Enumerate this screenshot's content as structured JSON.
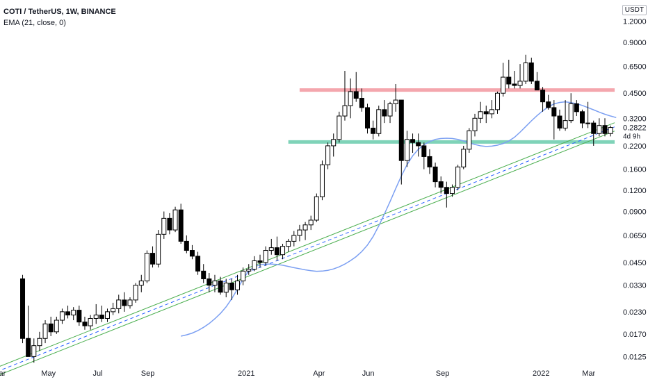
{
  "legend": {
    "symbol": "COTI / TetherUS, 1W, BINANCE",
    "indicator": "EMA (21, close, 0)"
  },
  "currency_badge": "USDT",
  "price_label": "0.2822",
  "countdown_label": "4d 9h",
  "colors": {
    "up_candle": "#ffffff",
    "down_candle": "#000000",
    "candle_outline": "#000000",
    "ema": "#7b9ff2",
    "resistance": "#f4a6ad",
    "support": "#7fd3b8",
    "channel": "#4caf50",
    "channel_mid": "#2962ff"
  },
  "chart_data": {
    "type": "candlestick",
    "y_scale": "log",
    "ylim": [
      0.0112,
      1.6
    ],
    "y_ticks": [
      "0.0125",
      "0.0170",
      "0.0230",
      "0.0330",
      "0.0450",
      "0.0650",
      "0.0900",
      "0.1200",
      "0.1600",
      "0.2200",
      "0.3200",
      "0.4500",
      "0.6500",
      "0.9000",
      "1.2000"
    ],
    "x_ticks": [
      "Mar",
      "May",
      "Jul",
      "Sep",
      "2021",
      "Apr",
      "Jun",
      "Sep",
      "2022",
      "Mar"
    ],
    "xlim": [
      "2020-03-02",
      "2022-03-21"
    ],
    "weekly_candles_ohlc": [
      [
        0.036,
        0.038,
        0.015,
        0.016
      ],
      [
        0.016,
        0.025,
        0.014,
        0.0125
      ],
      [
        0.0125,
        0.016,
        0.0115,
        0.0145
      ],
      [
        0.0145,
        0.0175,
        0.0135,
        0.016
      ],
      [
        0.016,
        0.0205,
        0.015,
        0.0195
      ],
      [
        0.0195,
        0.0215,
        0.0165,
        0.0175
      ],
      [
        0.0175,
        0.0215,
        0.017,
        0.0205
      ],
      [
        0.0205,
        0.024,
        0.0195,
        0.023
      ],
      [
        0.023,
        0.025,
        0.021,
        0.022
      ],
      [
        0.022,
        0.0245,
        0.0205,
        0.0235
      ],
      [
        0.0235,
        0.025,
        0.019,
        0.02
      ],
      [
        0.02,
        0.0215,
        0.018,
        0.019
      ],
      [
        0.019,
        0.022,
        0.018,
        0.021
      ],
      [
        0.021,
        0.0255,
        0.0195,
        0.022
      ],
      [
        0.022,
        0.025,
        0.02,
        0.021
      ],
      [
        0.021,
        0.024,
        0.02,
        0.023
      ],
      [
        0.023,
        0.026,
        0.022,
        0.024
      ],
      [
        0.024,
        0.029,
        0.0225,
        0.027
      ],
      [
        0.027,
        0.03,
        0.023,
        0.025
      ],
      [
        0.025,
        0.028,
        0.024,
        0.027
      ],
      [
        0.027,
        0.034,
        0.026,
        0.033
      ],
      [
        0.033,
        0.038,
        0.03,
        0.035
      ],
      [
        0.035,
        0.053,
        0.034,
        0.051
      ],
      [
        0.051,
        0.056,
        0.042,
        0.044
      ],
      [
        0.044,
        0.07,
        0.042,
        0.066
      ],
      [
        0.066,
        0.09,
        0.062,
        0.082
      ],
      [
        0.082,
        0.088,
        0.066,
        0.07
      ],
      [
        0.07,
        0.096,
        0.068,
        0.092
      ],
      [
        0.092,
        0.1,
        0.058,
        0.06
      ],
      [
        0.06,
        0.065,
        0.051,
        0.053
      ],
      [
        0.053,
        0.057,
        0.047,
        0.049
      ],
      [
        0.049,
        0.052,
        0.038,
        0.04
      ],
      [
        0.04,
        0.044,
        0.034,
        0.036
      ],
      [
        0.036,
        0.039,
        0.03,
        0.033
      ],
      [
        0.033,
        0.038,
        0.03,
        0.035
      ],
      [
        0.035,
        0.037,
        0.029,
        0.03
      ],
      [
        0.03,
        0.036,
        0.028,
        0.034
      ],
      [
        0.034,
        0.036,
        0.027,
        0.031
      ],
      [
        0.031,
        0.038,
        0.029,
        0.035
      ],
      [
        0.035,
        0.042,
        0.033,
        0.04
      ],
      [
        0.04,
        0.044,
        0.038,
        0.041
      ],
      [
        0.041,
        0.049,
        0.04,
        0.046
      ],
      [
        0.046,
        0.05,
        0.042,
        0.045
      ],
      [
        0.045,
        0.056,
        0.043,
        0.053
      ],
      [
        0.053,
        0.062,
        0.05,
        0.055
      ],
      [
        0.055,
        0.064,
        0.046,
        0.05
      ],
      [
        0.05,
        0.058,
        0.047,
        0.056
      ],
      [
        0.056,
        0.062,
        0.052,
        0.06
      ],
      [
        0.06,
        0.069,
        0.056,
        0.065
      ],
      [
        0.065,
        0.075,
        0.06,
        0.07
      ],
      [
        0.07,
        0.078,
        0.061,
        0.075
      ],
      [
        0.075,
        0.085,
        0.07,
        0.08
      ],
      [
        0.08,
        0.115,
        0.078,
        0.11
      ],
      [
        0.11,
        0.18,
        0.105,
        0.17
      ],
      [
        0.17,
        0.23,
        0.16,
        0.22
      ],
      [
        0.22,
        0.26,
        0.19,
        0.24
      ],
      [
        0.24,
        0.35,
        0.23,
        0.33
      ],
      [
        0.33,
        0.61,
        0.31,
        0.38
      ],
      [
        0.38,
        0.55,
        0.32,
        0.46
      ],
      [
        0.46,
        0.6,
        0.4,
        0.42
      ],
      [
        0.42,
        0.48,
        0.35,
        0.37
      ],
      [
        0.37,
        0.39,
        0.26,
        0.28
      ],
      [
        0.28,
        0.31,
        0.24,
        0.26
      ],
      [
        0.26,
        0.38,
        0.25,
        0.36
      ],
      [
        0.36,
        0.41,
        0.3,
        0.33
      ],
      [
        0.33,
        0.4,
        0.3,
        0.39
      ],
      [
        0.39,
        0.51,
        0.35,
        0.41
      ],
      [
        0.41,
        0.41,
        0.13,
        0.18
      ],
      [
        0.18,
        0.27,
        0.165,
        0.24
      ],
      [
        0.24,
        0.26,
        0.2,
        0.23
      ],
      [
        0.23,
        0.26,
        0.19,
        0.22
      ],
      [
        0.22,
        0.23,
        0.16,
        0.19
      ],
      [
        0.19,
        0.21,
        0.15,
        0.165
      ],
      [
        0.165,
        0.175,
        0.125,
        0.135
      ],
      [
        0.135,
        0.145,
        0.115,
        0.125
      ],
      [
        0.125,
        0.135,
        0.095,
        0.115
      ],
      [
        0.115,
        0.13,
        0.11,
        0.125
      ],
      [
        0.125,
        0.17,
        0.12,
        0.165
      ],
      [
        0.165,
        0.22,
        0.16,
        0.21
      ],
      [
        0.21,
        0.28,
        0.2,
        0.27
      ],
      [
        0.27,
        0.34,
        0.25,
        0.32
      ],
      [
        0.32,
        0.4,
        0.3,
        0.35
      ],
      [
        0.35,
        0.38,
        0.3,
        0.34
      ],
      [
        0.34,
        0.41,
        0.32,
        0.36
      ],
      [
        0.36,
        0.46,
        0.34,
        0.45
      ],
      [
        0.45,
        0.68,
        0.43,
        0.56
      ],
      [
        0.56,
        0.71,
        0.48,
        0.51
      ],
      [
        0.51,
        0.61,
        0.48,
        0.5
      ],
      [
        0.5,
        0.67,
        0.48,
        0.53
      ],
      [
        0.53,
        0.76,
        0.51,
        0.68
      ],
      [
        0.68,
        0.73,
        0.51,
        0.53
      ],
      [
        0.53,
        0.6,
        0.48,
        0.47
      ],
      [
        0.47,
        0.49,
        0.35,
        0.4
      ],
      [
        0.4,
        0.44,
        0.36,
        0.37
      ],
      [
        0.37,
        0.41,
        0.24,
        0.33
      ],
      [
        0.33,
        0.36,
        0.27,
        0.28
      ],
      [
        0.28,
        0.41,
        0.27,
        0.31
      ],
      [
        0.31,
        0.45,
        0.3,
        0.39
      ],
      [
        0.39,
        0.41,
        0.33,
        0.35
      ],
      [
        0.35,
        0.36,
        0.28,
        0.3
      ],
      [
        0.3,
        0.4,
        0.28,
        0.3
      ],
      [
        0.3,
        0.31,
        0.22,
        0.26
      ],
      [
        0.26,
        0.32,
        0.25,
        0.29
      ],
      [
        0.29,
        0.32,
        0.25,
        0.26
      ],
      [
        0.26,
        0.29,
        0.25,
        0.2822
      ]
    ],
    "ema_21": [
      0.0165,
      0.0168,
      0.0172,
      0.0178,
      0.0186,
      0.0196,
      0.0209,
      0.0225,
      0.0246,
      0.0275,
      0.0313,
      0.036,
      0.04,
      0.0425,
      0.0436,
      0.044,
      0.044,
      0.0438,
      0.0433,
      0.0426,
      0.0419,
      0.0413,
      0.0407,
      0.0402,
      0.0399,
      0.04,
      0.0404,
      0.0412,
      0.0424,
      0.044,
      0.0461,
      0.0487,
      0.0522,
      0.057,
      0.064,
      0.074,
      0.087,
      0.103,
      0.123,
      0.146,
      0.17,
      0.192,
      0.21,
      0.223,
      0.233,
      0.24,
      0.243,
      0.244,
      0.243,
      0.24,
      0.235,
      0.229,
      0.224,
      0.22,
      0.218,
      0.219,
      0.222,
      0.227,
      0.235,
      0.247,
      0.265,
      0.286,
      0.309,
      0.332,
      0.354,
      0.374,
      0.389,
      0.397,
      0.4,
      0.396,
      0.39,
      0.381,
      0.37,
      0.359,
      0.348,
      0.338,
      0.33,
      0.323
    ],
    "horizontal_levels": [
      {
        "name": "resistance",
        "value": 0.47
      },
      {
        "name": "support",
        "value": 0.232
      }
    ],
    "trend_channel": {
      "from": {
        "date": "2020-03-30",
        "price": 0.0117
      },
      "to": {
        "date": "2022-03-21",
        "price": 0.27
      }
    }
  }
}
